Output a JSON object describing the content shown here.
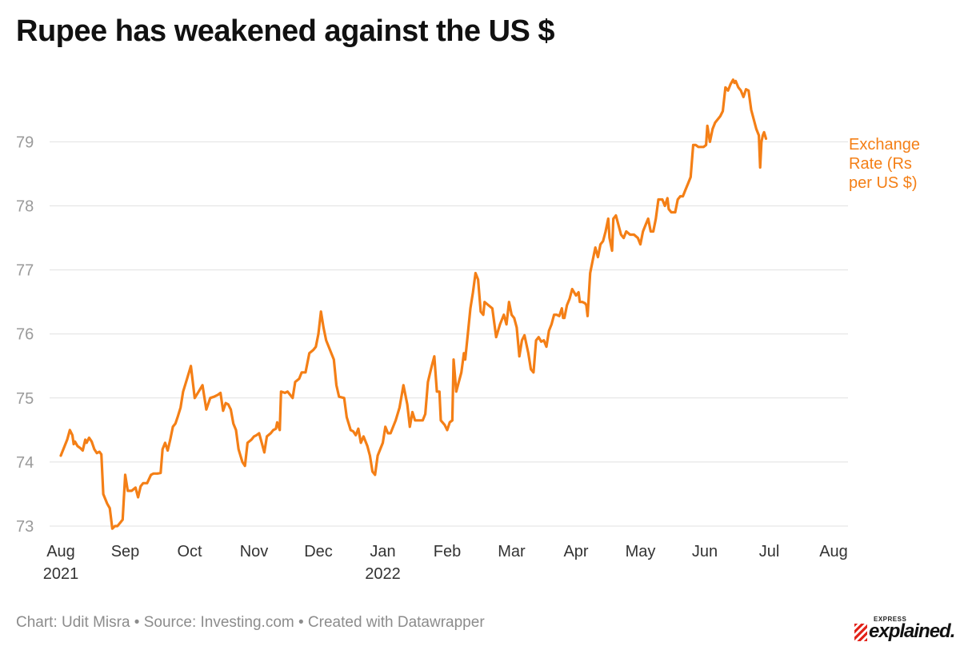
{
  "title": "Rupee has weakened against the US $",
  "footer": "Chart: Udit Misra • Source: Investing.com • Created with Datawrapper",
  "logo": {
    "top": "EXPRESS",
    "main": "explained."
  },
  "colors": {
    "line": "#f47f16",
    "grid": "#e1e1e1",
    "axis_text": "#9a9a9a"
  },
  "chart_data": {
    "type": "line",
    "title": "Rupee has weakened against the US $",
    "ylim": [
      72.9,
      80.1
    ],
    "yticks": [
      73,
      74,
      75,
      76,
      77,
      78,
      79
    ],
    "grid": true,
    "xrange": [
      0,
      12.2
    ],
    "xticks": [
      {
        "x": 0,
        "label": "Aug",
        "sub": "2021"
      },
      {
        "x": 1,
        "label": "Sep",
        "sub": ""
      },
      {
        "x": 2,
        "label": "Oct",
        "sub": ""
      },
      {
        "x": 3,
        "label": "Nov",
        "sub": ""
      },
      {
        "x": 4,
        "label": "Dec",
        "sub": ""
      },
      {
        "x": 5,
        "label": "Jan",
        "sub": "2022"
      },
      {
        "x": 6,
        "label": "Feb",
        "sub": ""
      },
      {
        "x": 7,
        "label": "Mar",
        "sub": ""
      },
      {
        "x": 8,
        "label": "Apr",
        "sub": ""
      },
      {
        "x": 9,
        "label": "May",
        "sub": ""
      },
      {
        "x": 10,
        "label": "Jun",
        "sub": ""
      },
      {
        "x": 11,
        "label": "Jul",
        "sub": ""
      },
      {
        "x": 12,
        "label": "Aug",
        "sub": ""
      }
    ],
    "series": [
      {
        "name": "Exchange Rate (Rs per US $)",
        "label_lines": [
          "Exchange",
          "Rate (Rs",
          "per US $)"
        ],
        "points": [
          [
            0.0,
            74.1
          ],
          [
            0.06,
            74.25
          ],
          [
            0.1,
            74.35
          ],
          [
            0.14,
            74.5
          ],
          [
            0.18,
            74.42
          ],
          [
            0.2,
            74.28
          ],
          [
            0.22,
            74.32
          ],
          [
            0.26,
            74.25
          ],
          [
            0.3,
            74.22
          ],
          [
            0.34,
            74.18
          ],
          [
            0.38,
            74.35
          ],
          [
            0.4,
            74.3
          ],
          [
            0.44,
            74.38
          ],
          [
            0.48,
            74.32
          ],
          [
            0.52,
            74.2
          ],
          [
            0.56,
            74.14
          ],
          [
            0.6,
            74.16
          ],
          [
            0.63,
            74.12
          ],
          [
            0.66,
            73.5
          ],
          [
            0.72,
            73.35
          ],
          [
            0.76,
            73.28
          ],
          [
            0.8,
            72.96
          ],
          [
            0.84,
            73.0
          ],
          [
            0.88,
            73.0
          ],
          [
            0.92,
            73.05
          ],
          [
            0.96,
            73.1
          ],
          [
            1.0,
            73.8
          ],
          [
            1.04,
            73.55
          ],
          [
            1.1,
            73.55
          ],
          [
            1.16,
            73.6
          ],
          [
            1.2,
            73.45
          ],
          [
            1.24,
            73.62
          ],
          [
            1.28,
            73.67
          ],
          [
            1.34,
            73.67
          ],
          [
            1.4,
            73.8
          ],
          [
            1.44,
            73.82
          ],
          [
            1.5,
            73.82
          ],
          [
            1.55,
            73.83
          ],
          [
            1.58,
            74.2
          ],
          [
            1.62,
            74.3
          ],
          [
            1.66,
            74.18
          ],
          [
            1.7,
            74.35
          ],
          [
            1.74,
            74.55
          ],
          [
            1.78,
            74.6
          ],
          [
            1.82,
            74.72
          ],
          [
            1.86,
            74.85
          ],
          [
            1.9,
            75.1
          ],
          [
            1.96,
            75.3
          ],
          [
            2.02,
            75.5
          ],
          [
            2.08,
            75.0
          ],
          [
            2.14,
            75.1
          ],
          [
            2.2,
            75.2
          ],
          [
            2.26,
            74.82
          ],
          [
            2.32,
            75.0
          ],
          [
            2.38,
            75.02
          ],
          [
            2.44,
            75.05
          ],
          [
            2.48,
            75.08
          ],
          [
            2.52,
            74.8
          ],
          [
            2.56,
            74.92
          ],
          [
            2.6,
            74.9
          ],
          [
            2.64,
            74.82
          ],
          [
            2.68,
            74.6
          ],
          [
            2.72,
            74.5
          ],
          [
            2.76,
            74.2
          ],
          [
            2.82,
            74.0
          ],
          [
            2.86,
            73.94
          ],
          [
            2.9,
            74.3
          ],
          [
            2.96,
            74.35
          ],
          [
            3.0,
            74.4
          ],
          [
            3.04,
            74.42
          ],
          [
            3.08,
            74.45
          ],
          [
            3.12,
            74.3
          ],
          [
            3.16,
            74.15
          ],
          [
            3.2,
            74.4
          ],
          [
            3.26,
            74.45
          ],
          [
            3.3,
            74.5
          ],
          [
            3.34,
            74.52
          ],
          [
            3.36,
            74.62
          ],
          [
            3.4,
            74.5
          ],
          [
            3.42,
            75.1
          ],
          [
            3.48,
            75.08
          ],
          [
            3.52,
            75.1
          ],
          [
            3.56,
            75.05
          ],
          [
            3.6,
            75.0
          ],
          [
            3.64,
            75.25
          ],
          [
            3.7,
            75.3
          ],
          [
            3.74,
            75.4
          ],
          [
            3.8,
            75.4
          ],
          [
            3.86,
            75.7
          ],
          [
            3.92,
            75.75
          ],
          [
            3.96,
            75.8
          ],
          [
            4.0,
            76.0
          ],
          [
            4.04,
            76.35
          ],
          [
            4.08,
            76.1
          ],
          [
            4.12,
            75.9
          ],
          [
            4.18,
            75.75
          ],
          [
            4.24,
            75.6
          ],
          [
            4.28,
            75.2
          ],
          [
            4.32,
            75.02
          ],
          [
            4.4,
            75.0
          ],
          [
            4.44,
            74.7
          ],
          [
            4.5,
            74.5
          ],
          [
            4.54,
            74.48
          ],
          [
            4.58,
            74.42
          ],
          [
            4.62,
            74.52
          ],
          [
            4.66,
            74.3
          ],
          [
            4.7,
            74.4
          ],
          [
            4.76,
            74.25
          ],
          [
            4.8,
            74.1
          ],
          [
            4.84,
            73.85
          ],
          [
            4.88,
            73.8
          ],
          [
            4.92,
            74.1
          ],
          [
            4.96,
            74.2
          ],
          [
            5.0,
            74.3
          ],
          [
            5.04,
            74.55
          ],
          [
            5.08,
            74.45
          ],
          [
            5.12,
            74.45
          ],
          [
            5.16,
            74.55
          ],
          [
            5.2,
            74.65
          ],
          [
            5.26,
            74.85
          ],
          [
            5.32,
            75.2
          ],
          [
            5.38,
            74.9
          ],
          [
            5.42,
            74.55
          ],
          [
            5.46,
            74.78
          ],
          [
            5.5,
            74.65
          ],
          [
            5.56,
            74.65
          ],
          [
            5.62,
            74.65
          ],
          [
            5.66,
            74.75
          ],
          [
            5.7,
            75.25
          ],
          [
            5.76,
            75.5
          ],
          [
            5.8,
            75.65
          ],
          [
            5.84,
            75.1
          ],
          [
            5.88,
            75.1
          ],
          [
            5.9,
            74.65
          ],
          [
            5.96,
            74.58
          ],
          [
            6.0,
            74.5
          ],
          [
            6.04,
            74.62
          ],
          [
            6.08,
            74.65
          ],
          [
            6.1,
            75.6
          ],
          [
            6.14,
            75.1
          ],
          [
            6.18,
            75.25
          ],
          [
            6.22,
            75.4
          ],
          [
            6.26,
            75.7
          ],
          [
            6.28,
            75.6
          ],
          [
            6.32,
            76.0
          ],
          [
            6.36,
            76.4
          ],
          [
            6.4,
            76.65
          ],
          [
            6.44,
            76.95
          ],
          [
            6.48,
            76.85
          ],
          [
            6.52,
            76.35
          ],
          [
            6.56,
            76.3
          ],
          [
            6.58,
            76.5
          ],
          [
            6.64,
            76.45
          ],
          [
            6.7,
            76.4
          ],
          [
            6.76,
            75.95
          ],
          [
            6.82,
            76.15
          ],
          [
            6.88,
            76.3
          ],
          [
            6.92,
            76.15
          ],
          [
            6.96,
            76.5
          ],
          [
            7.0,
            76.3
          ],
          [
            7.04,
            76.25
          ],
          [
            7.08,
            76.1
          ],
          [
            7.12,
            75.65
          ],
          [
            7.16,
            75.9
          ],
          [
            7.2,
            75.98
          ],
          [
            7.26,
            75.7
          ],
          [
            7.3,
            75.45
          ],
          [
            7.34,
            75.4
          ],
          [
            7.38,
            75.9
          ],
          [
            7.42,
            75.95
          ],
          [
            7.46,
            75.88
          ],
          [
            7.5,
            75.9
          ],
          [
            7.54,
            75.8
          ],
          [
            7.58,
            76.05
          ],
          [
            7.62,
            76.15
          ],
          [
            7.66,
            76.3
          ],
          [
            7.7,
            76.3
          ],
          [
            7.74,
            76.28
          ],
          [
            7.78,
            76.4
          ],
          [
            7.8,
            76.25
          ],
          [
            7.82,
            76.25
          ],
          [
            7.86,
            76.45
          ],
          [
            7.9,
            76.55
          ],
          [
            7.94,
            76.7
          ],
          [
            8.0,
            76.6
          ],
          [
            8.04,
            76.65
          ],
          [
            8.06,
            76.5
          ],
          [
            8.1,
            76.5
          ],
          [
            8.14,
            76.48
          ],
          [
            8.16,
            76.45
          ],
          [
            8.18,
            76.28
          ],
          [
            8.22,
            76.95
          ],
          [
            8.26,
            77.15
          ],
          [
            8.3,
            77.35
          ],
          [
            8.34,
            77.2
          ],
          [
            8.38,
            77.4
          ],
          [
            8.42,
            77.45
          ],
          [
            8.46,
            77.6
          ],
          [
            8.5,
            77.8
          ],
          [
            8.52,
            77.5
          ],
          [
            8.56,
            77.3
          ],
          [
            8.58,
            77.8
          ],
          [
            8.62,
            77.85
          ],
          [
            8.66,
            77.7
          ],
          [
            8.7,
            77.55
          ],
          [
            8.74,
            77.5
          ],
          [
            8.78,
            77.6
          ],
          [
            8.84,
            77.55
          ],
          [
            8.9,
            77.55
          ],
          [
            8.96,
            77.5
          ],
          [
            9.0,
            77.4
          ],
          [
            9.04,
            77.6
          ],
          [
            9.08,
            77.7
          ],
          [
            9.12,
            77.8
          ],
          [
            9.16,
            77.6
          ],
          [
            9.2,
            77.6
          ],
          [
            9.24,
            77.8
          ],
          [
            9.28,
            78.1
          ],
          [
            9.34,
            78.1
          ],
          [
            9.38,
            78.0
          ],
          [
            9.42,
            78.12
          ],
          [
            9.44,
            77.95
          ],
          [
            9.48,
            77.9
          ],
          [
            9.54,
            77.9
          ],
          [
            9.58,
            78.1
          ],
          [
            9.62,
            78.15
          ],
          [
            9.66,
            78.15
          ],
          [
            9.7,
            78.25
          ],
          [
            9.74,
            78.35
          ],
          [
            9.78,
            78.45
          ],
          [
            9.82,
            78.95
          ],
          [
            9.86,
            78.95
          ],
          [
            9.9,
            78.92
          ],
          [
            9.94,
            78.92
          ],
          [
            9.98,
            78.92
          ],
          [
            10.02,
            78.95
          ],
          [
            10.04,
            79.25
          ],
          [
            10.08,
            79.0
          ],
          [
            10.12,
            79.2
          ],
          [
            10.16,
            79.3
          ],
          [
            10.2,
            79.35
          ],
          [
            10.24,
            79.4
          ],
          [
            10.28,
            79.48
          ],
          [
            10.32,
            79.85
          ],
          [
            10.36,
            79.8
          ],
          [
            10.4,
            79.9
          ],
          [
            10.44,
            79.97
          ],
          [
            10.46,
            79.92
          ],
          [
            10.48,
            79.95
          ],
          [
            10.52,
            79.85
          ],
          [
            10.56,
            79.8
          ],
          [
            10.6,
            79.7
          ],
          [
            10.64,
            79.82
          ],
          [
            10.68,
            79.8
          ],
          [
            10.72,
            79.5
          ],
          [
            10.76,
            79.35
          ],
          [
            10.8,
            79.2
          ],
          [
            10.84,
            79.1
          ],
          [
            10.86,
            78.6
          ],
          [
            10.88,
            79.0
          ],
          [
            10.9,
            79.1
          ],
          [
            10.92,
            79.15
          ],
          [
            10.95,
            79.05
          ]
        ]
      }
    ]
  }
}
